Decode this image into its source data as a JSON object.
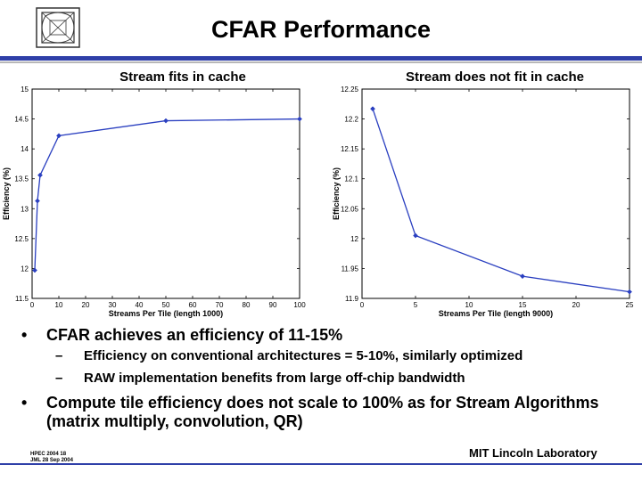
{
  "slide": {
    "title": "CFAR Performance",
    "footer_left_line1": "HPEC 2004 18",
    "footer_left_line2": "JML 28 Sep 2004",
    "footer_right": "MIT Lincoln Laboratory"
  },
  "colors": {
    "accent": "#2f3fa8",
    "series": "#2a3fc0"
  },
  "bullets": [
    {
      "text": "CFAR achieves an efficiency of 11-15%",
      "sub": [
        "Efficiency on conventional architectures = 5-10%, similarly optimized",
        "RAW implementation benefits from large off-chip bandwidth"
      ]
    },
    {
      "text": "Compute tile efficiency does not scale to 100% as for Stream Algorithms (matrix multiply, convolution, QR)",
      "sub": []
    }
  ],
  "bullet_marker": "•",
  "sub_marker": "–",
  "chart_data": [
    {
      "type": "line",
      "title": "Stream fits in cache",
      "xlabel": "Streams Per Tile (length 1000)",
      "ylabel": "Efficiency (%)",
      "xlim": [
        0,
        100
      ],
      "ylim": [
        11.5,
        15
      ],
      "xticks": [
        0,
        10,
        20,
        30,
        40,
        50,
        60,
        70,
        80,
        90,
        100
      ],
      "yticks": [
        11.5,
        12,
        12.5,
        13,
        13.5,
        14,
        14.5,
        15
      ],
      "ytick_labels": [
        "11.5",
        "12",
        "12.5",
        "13",
        "13.5",
        "14",
        "14.5",
        "15"
      ],
      "x": [
        1,
        2,
        3,
        10,
        50,
        100
      ],
      "y": [
        11.97,
        13.13,
        13.56,
        14.22,
        14.47,
        14.5
      ]
    },
    {
      "type": "line",
      "title": "Stream does not fit in cache",
      "xlabel": "Streams Per Tile (length 9000)",
      "ylabel": "Efficiency (%)",
      "xlim": [
        0,
        25
      ],
      "ylim": [
        11.9,
        12.25
      ],
      "xticks": [
        0,
        5,
        10,
        15,
        20,
        25
      ],
      "yticks": [
        11.9,
        11.95,
        12,
        12.05,
        12.1,
        12.15,
        12.2,
        12.25
      ],
      "ytick_labels": [
        "11.9",
        "11.95",
        "12",
        "12.05",
        "12.1",
        "12.15",
        "12.2",
        "12.25"
      ],
      "x": [
        1,
        5,
        15,
        25
      ],
      "y": [
        12.217,
        12.005,
        11.937,
        11.911
      ]
    }
  ]
}
